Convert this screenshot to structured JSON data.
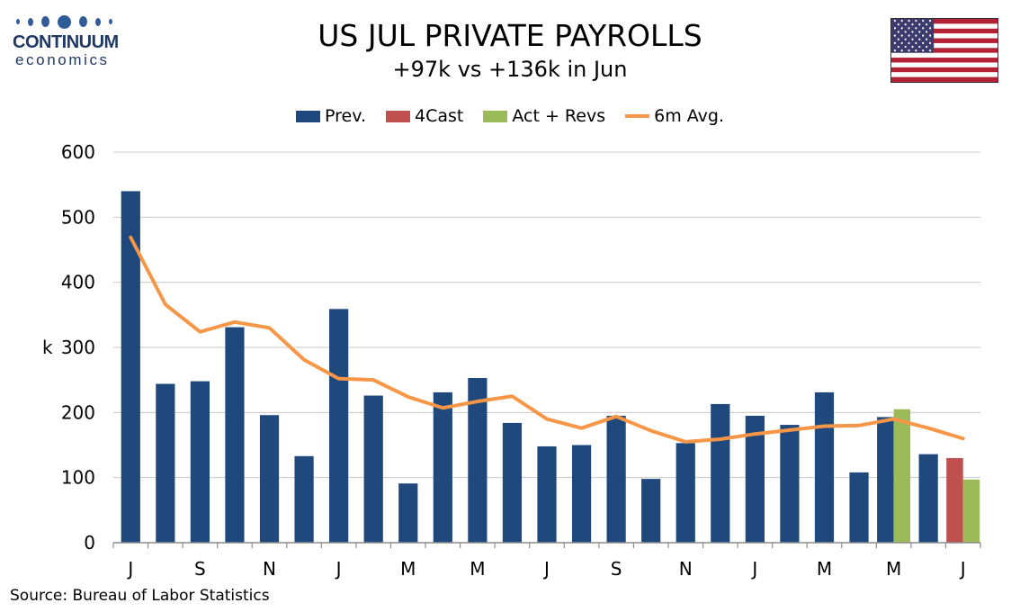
{
  "logo": {
    "top": "CONTINUUM",
    "bottom": "economics",
    "color": "#2f5c97"
  },
  "header": {
    "title": "US JUL PRIVATE PAYROLLS",
    "subtitle": "+97k vs +136k in Jun"
  },
  "flag": {
    "icon": "us-flag-icon"
  },
  "source": "Source: Bureau of Labor Statistics",
  "chart_data": {
    "type": "bar",
    "ylabel": "k",
    "ylim": [
      0,
      600
    ],
    "yticks": [
      0,
      100,
      200,
      300,
      400,
      500,
      600
    ],
    "xtick_labels": [
      "J",
      "S",
      "N",
      "J",
      "M",
      "M",
      "J",
      "S",
      "N",
      "J",
      "M",
      "M",
      "J"
    ],
    "grid": true,
    "legend_position": "top-center",
    "colors": {
      "prev": "#1f497d",
      "forecast": "#c0504d",
      "actual": "#9bbb59",
      "avg": "#f79646"
    },
    "series": [
      {
        "name": "Prev.",
        "kind": "bar",
        "values": [
          540,
          244,
          248,
          331,
          196,
          133,
          359,
          226,
          91,
          231,
          253,
          184,
          148,
          150,
          195,
          98,
          153,
          213,
          195,
          181,
          231,
          108,
          193,
          136,
          null
        ]
      },
      {
        "name": "4Cast",
        "kind": "bar",
        "values": [
          null,
          null,
          null,
          null,
          null,
          null,
          null,
          null,
          null,
          null,
          null,
          null,
          null,
          null,
          null,
          null,
          null,
          null,
          null,
          null,
          null,
          null,
          null,
          null,
          130
        ]
      },
      {
        "name": "Act + Revs",
        "kind": "bar",
        "values": [
          null,
          null,
          null,
          null,
          null,
          null,
          null,
          null,
          null,
          null,
          null,
          null,
          null,
          null,
          null,
          null,
          null,
          null,
          null,
          null,
          null,
          null,
          205,
          null,
          97
        ]
      },
      {
        "name": "6m Avg.",
        "kind": "line",
        "values": [
          469,
          366,
          324,
          339,
          330,
          281,
          252,
          250,
          224,
          207,
          217,
          225,
          190,
          176,
          194,
          172,
          155,
          159,
          167,
          173,
          179,
          180,
          190,
          176,
          160
        ]
      }
    ]
  }
}
